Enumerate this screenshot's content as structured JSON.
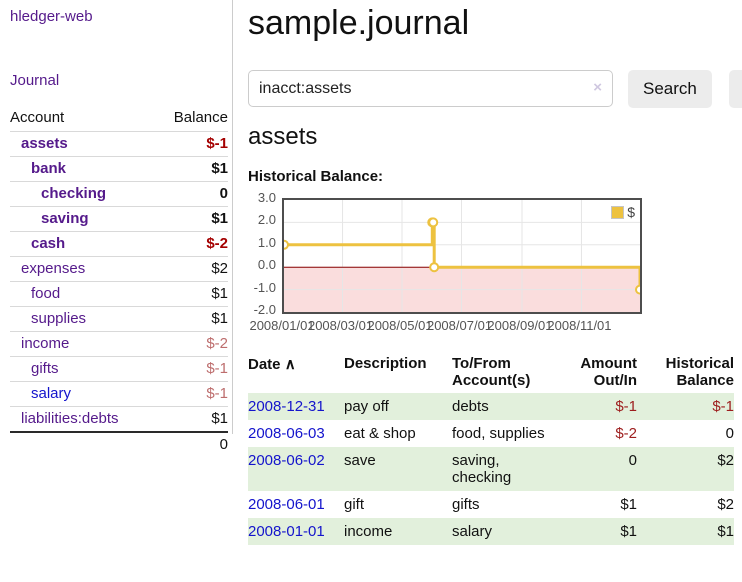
{
  "app": {
    "brand": "hledger-web",
    "nav_journal": "Journal"
  },
  "colors": {
    "text": "#111111",
    "divider": "#cccccc",
    "link_purple": "#551a8b",
    "link_blue": "#1414cc",
    "negative_strong": "#a40000",
    "negative_muted": "#bd6d6d",
    "negative_table": "#9d1d1d",
    "row_green": "#e2f0dc",
    "button_bg": "#ececec",
    "chart_line": "#edc240",
    "chart_negative_fill": "#fadddd",
    "chart_zero_line": "#8b0000",
    "chart_grid": "#e6e6e6",
    "chart_border": "#4d4d4d"
  },
  "sidebar": {
    "header": {
      "account": "Account",
      "balance": "Balance"
    },
    "accounts": [
      {
        "name": "assets",
        "balance": "$-1",
        "indent": 1,
        "bold": true,
        "name_color": "purple",
        "balance_color": "negative_strong"
      },
      {
        "name": "bank",
        "balance": "$1",
        "indent": 2,
        "bold": true,
        "name_color": "purple",
        "balance_color": "text"
      },
      {
        "name": "checking",
        "balance": "0",
        "indent": 3,
        "bold": true,
        "name_color": "purple",
        "balance_color": "text"
      },
      {
        "name": "saving",
        "balance": "$1",
        "indent": 3,
        "bold": true,
        "name_color": "purple",
        "balance_color": "text"
      },
      {
        "name": "cash",
        "balance": "$-2",
        "indent": 2,
        "bold": true,
        "name_color": "purple",
        "balance_color": "negative_strong"
      },
      {
        "name": "expenses",
        "balance": "$2",
        "indent": 1,
        "bold": false,
        "name_color": "purple",
        "balance_color": "text"
      },
      {
        "name": "food",
        "balance": "$1",
        "indent": 2,
        "bold": false,
        "name_color": "purple",
        "balance_color": "text"
      },
      {
        "name": "supplies",
        "balance": "$1",
        "indent": 2,
        "bold": false,
        "name_color": "purple",
        "balance_color": "text"
      },
      {
        "name": "income",
        "balance": "$-2",
        "indent": 1,
        "bold": false,
        "name_color": "purple",
        "balance_color": "negative_muted"
      },
      {
        "name": "gifts",
        "balance": "$-1",
        "indent": 2,
        "bold": false,
        "name_color": "purple",
        "balance_color": "negative_muted"
      },
      {
        "name": "salary",
        "balance": "$-1",
        "indent": 2,
        "bold": false,
        "name_color": "blue",
        "balance_color": "negative_muted"
      },
      {
        "name": "liabilities:debts",
        "balance": "$1",
        "indent": 1,
        "bold": false,
        "name_color": "purple",
        "balance_color": "text"
      }
    ],
    "total": "0"
  },
  "main": {
    "title": "sample.journal",
    "search": {
      "value": "inacct:assets",
      "clear_icon": "×",
      "button_label": "Search",
      "help_label": "?"
    },
    "account_heading": "assets",
    "chart_label": "Historical Balance:"
  },
  "chart_data": {
    "type": "line",
    "title": "Historical Balance",
    "step": true,
    "xlim": [
      "2008-01-01",
      "2008-12-31"
    ],
    "ylim": [
      -2,
      3
    ],
    "series": [
      {
        "name": "$",
        "points": [
          {
            "x": "2008-01-01",
            "y": 1
          },
          {
            "x": "2008-06-01",
            "y": 2
          },
          {
            "x": "2008-06-02",
            "y": 2
          },
          {
            "x": "2008-06-03",
            "y": 0
          },
          {
            "x": "2008-12-31",
            "y": -1
          }
        ]
      }
    ],
    "x_ticks": [
      {
        "x": "2008-01-01",
        "label": "2008/01/01"
      },
      {
        "x": "2008-03-01",
        "label": "2008/03/01"
      },
      {
        "x": "2008-05-01",
        "label": "2008/05/01"
      },
      {
        "x": "2008-07-01",
        "label": "2008/07/01"
      },
      {
        "x": "2008-09-01",
        "label": "2008/09/01"
      },
      {
        "x": "2008-11-01",
        "label": "2008/11/01"
      }
    ],
    "y_ticks": [
      {
        "v": 3,
        "label": "3.0"
      },
      {
        "v": 2,
        "label": "2.0"
      },
      {
        "v": 1,
        "label": "1.0"
      },
      {
        "v": 0,
        "label": "0.0"
      },
      {
        "v": -1,
        "label": "-1.0"
      },
      {
        "v": -2,
        "label": "-2.0"
      }
    ],
    "legend": {
      "position": "top-right",
      "label": "$"
    },
    "grid": true
  },
  "register": {
    "headers": [
      "Date",
      "Description",
      "To/From Account(s)",
      "Amount Out/In",
      "Historical Balance"
    ],
    "sort_arrow": "∧",
    "rows": [
      {
        "date": "2008-12-31",
        "description": "pay off",
        "accounts": "debts",
        "amount": "$-1",
        "balance": "$-1",
        "amount_neg": true,
        "balance_neg": true
      },
      {
        "date": "2008-06-03",
        "description": "eat & shop",
        "accounts": "food, supplies",
        "amount": "$-2",
        "balance": "0",
        "amount_neg": true,
        "balance_neg": false
      },
      {
        "date": "2008-06-02",
        "description": "save",
        "accounts": "saving, checking",
        "amount": "0",
        "balance": "$2",
        "amount_neg": false,
        "balance_neg": false
      },
      {
        "date": "2008-06-01",
        "description": "gift",
        "accounts": "gifts",
        "amount": "$1",
        "balance": "$2",
        "amount_neg": false,
        "balance_neg": false
      },
      {
        "date": "2008-01-01",
        "description": "income",
        "accounts": "salary",
        "amount": "$1",
        "balance": "$1",
        "amount_neg": false,
        "balance_neg": false
      }
    ]
  }
}
